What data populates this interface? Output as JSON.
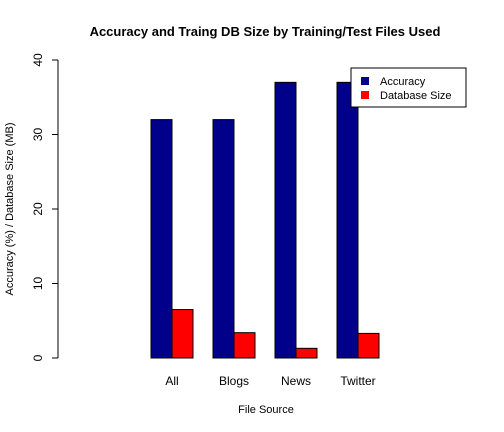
{
  "chart_data": {
    "type": "bar",
    "title": "Accuracy and Traing DB Size by Training/Test Files Used",
    "xlabel": "File Source",
    "ylabel": "Accuracy (%) / Database Size (MB)",
    "categories": [
      "All",
      "Blogs",
      "News",
      "Twitter"
    ],
    "series": [
      {
        "name": "Accuracy",
        "values": [
          32,
          32,
          37,
          37
        ],
        "color": "#00008B"
      },
      {
        "name": "Database Size",
        "values": [
          6.5,
          3.4,
          1.3,
          3.3
        ],
        "color": "#FF0000"
      }
    ],
    "ylim": [
      0,
      40
    ],
    "yticks": [
      0,
      10,
      20,
      30,
      40
    ],
    "grid": false,
    "legend_position": "top-right"
  }
}
